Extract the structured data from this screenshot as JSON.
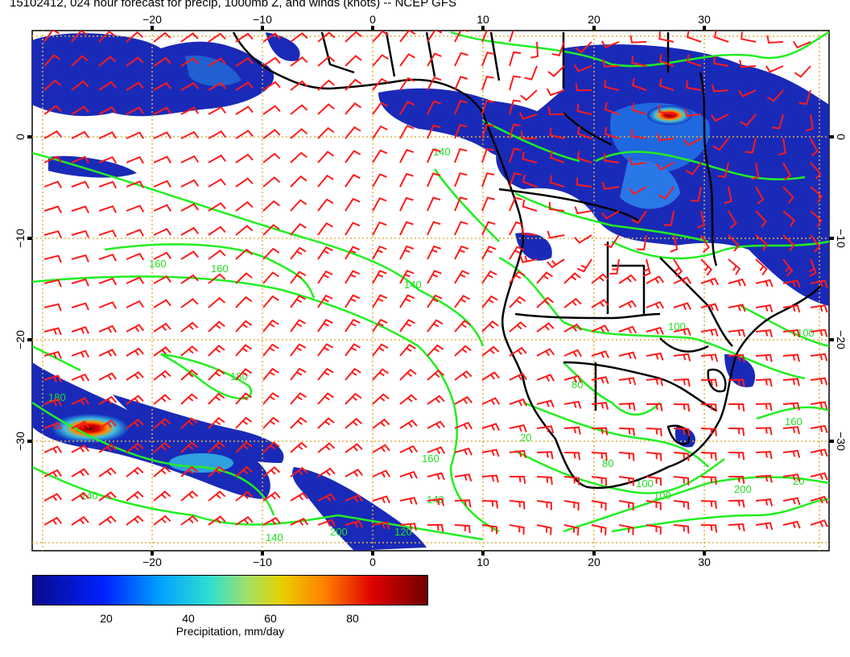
{
  "title": "15102412, 024 hour forecast for precip, 1000mb Z, and winds (knots) -- NCEP GFS",
  "map": {
    "lon_labels": [
      "−20",
      "−10",
      "0",
      "10",
      "20",
      "30"
    ],
    "lat_labels": [
      "0",
      "−10",
      "−20",
      "−30"
    ],
    "contour_labels": [
      "140",
      "140",
      "160",
      "160",
      "160",
      "180",
      "180",
      "200",
      "100",
      "140",
      "80",
      "20",
      "80",
      "100",
      "100",
      "140",
      "120",
      "200",
      "20",
      "140",
      "100",
      "160"
    ],
    "colors": {
      "contour": "#22ee22",
      "barb": "#ff1a1a",
      "coast": "#000000",
      "grid": "#e0b040"
    }
  },
  "colorbar": {
    "ticks": [
      "20",
      "40",
      "60",
      "80"
    ],
    "label": "Precipitation, mm/day",
    "range": [
      0,
      100
    ]
  }
}
